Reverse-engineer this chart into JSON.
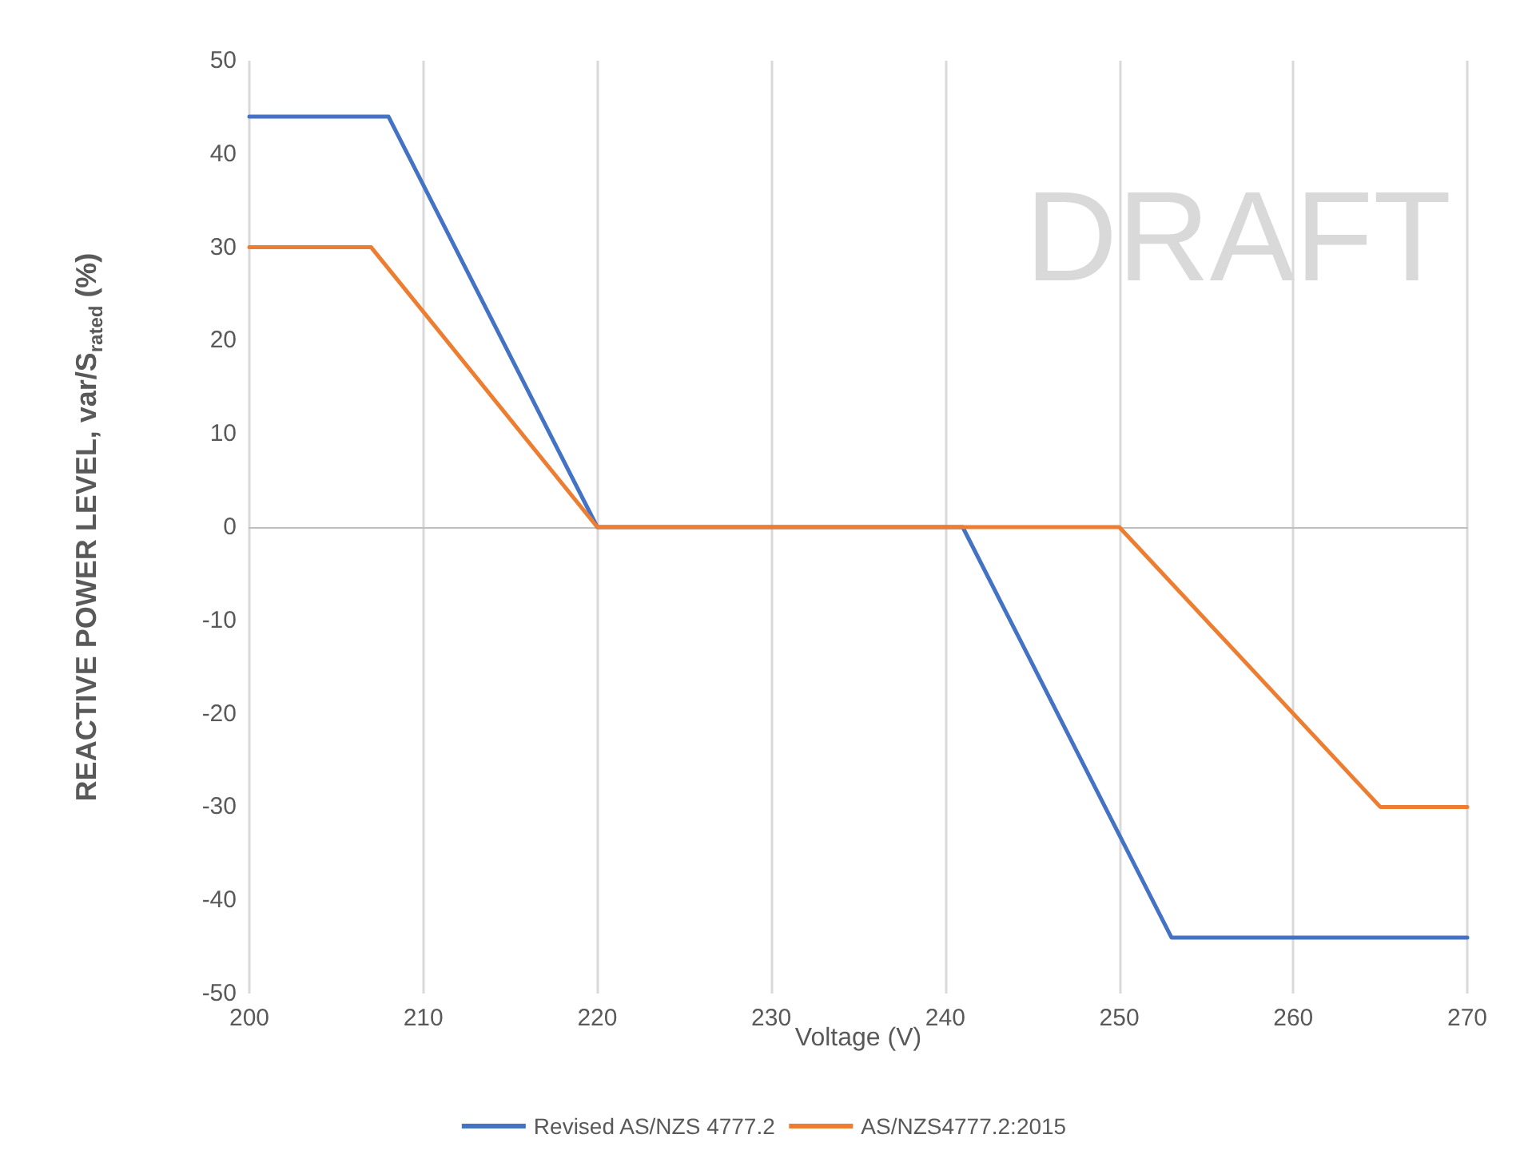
{
  "chart_data": {
    "type": "line",
    "xlabel": "Voltage (V)",
    "ylabel": "REACTIVE POWER LEVEL, var/S$_{rated}$ (%)",
    "xlim": [
      200,
      270
    ],
    "xticks": [
      200,
      210,
      220,
      230,
      240,
      250,
      260,
      270
    ],
    "ylim": [
      -50,
      50
    ],
    "yticks": [
      -50,
      -40,
      -30,
      -20,
      -10,
      0,
      10,
      20,
      30,
      40,
      50
    ],
    "grid": "x",
    "legend": "bottom",
    "marker": "none",
    "line_style": "solid",
    "annotations": [
      "DRAFT"
    ],
    "series": [
      {
        "name": "Revised AS/NZS 4777.2",
        "color": "#4472c4",
        "x": [
          200,
          208,
          220,
          241,
          253,
          270
        ],
        "values": [
          44,
          44,
          0,
          0,
          -44,
          -44
        ]
      },
      {
        "name": "AS/NZS4777.2:2015",
        "color": "#ed7d31",
        "x": [
          200,
          207,
          220,
          250,
          265,
          270
        ],
        "values": [
          30,
          30,
          0,
          0,
          -30,
          -30
        ]
      }
    ]
  }
}
